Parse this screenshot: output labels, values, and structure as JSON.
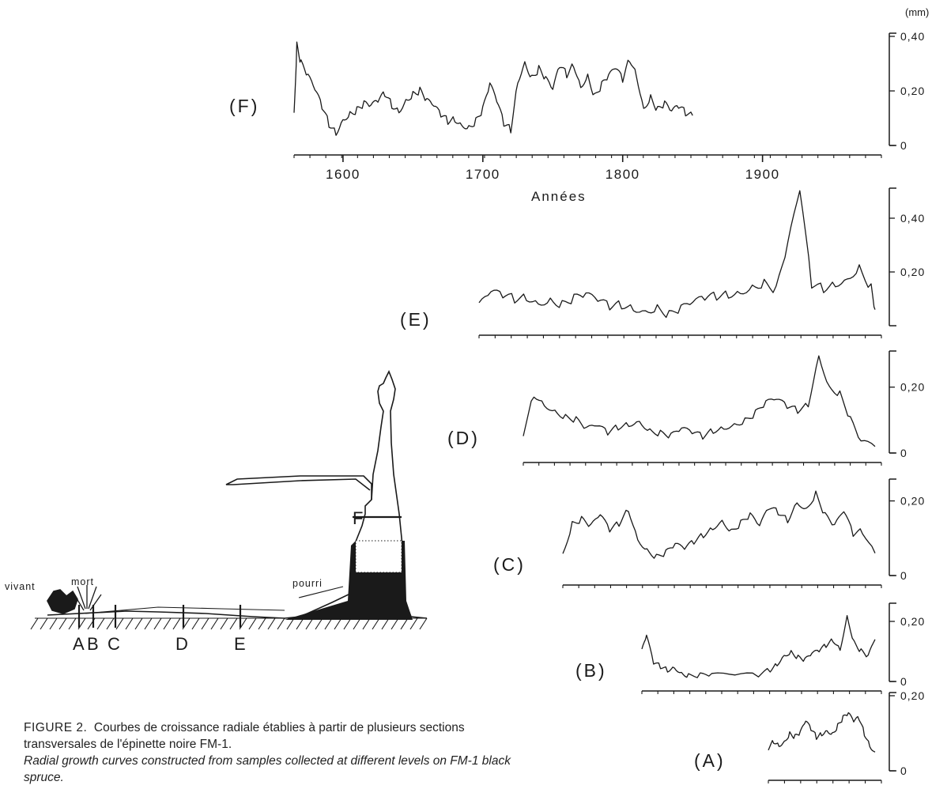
{
  "unit_label": "(mm)",
  "x_axis_label": "Années",
  "caption": {
    "figure_label": "FIGURE 2.",
    "french": "Courbes de croissance radiale établies à partir de plusieurs sections transversales de l'épinette noire FM-1.",
    "english": "Radial growth curves constructed from samples collected at different levels on FM-1 black spruce."
  },
  "diagram": {
    "labels": {
      "living": "vivant",
      "dead": "mort",
      "rotten": "pourri",
      "rotten_inside": "pourri"
    },
    "section_labels": [
      "A",
      "B",
      "C",
      "D",
      "E",
      "F"
    ]
  },
  "chart_data": [
    {
      "type": "line",
      "panel": "F",
      "label": "(F)",
      "ylim": [
        0,
        0.4
      ],
      "yticks": [
        0,
        0.2,
        0.4
      ],
      "ytick_labels": [
        "0",
        "0,20",
        "0,40"
      ],
      "xlim": [
        1565,
        1985
      ],
      "xticks": [
        1600,
        1700,
        1800,
        1900
      ],
      "xtick_labels": [
        "1600",
        "1700",
        "1800",
        "1900"
      ],
      "series": [
        {
          "x": [
            1565,
            1567,
            1570,
            1575,
            1580,
            1585,
            1590,
            1595,
            1600,
            1605,
            1610,
            1615,
            1620,
            1625,
            1630,
            1635,
            1640,
            1645,
            1650,
            1655,
            1660,
            1665,
            1670,
            1675,
            1680,
            1685,
            1690,
            1695,
            1700,
            1705,
            1710,
            1715,
            1720,
            1725,
            1730,
            1735,
            1740,
            1745,
            1750,
            1755,
            1760,
            1765,
            1770,
            1775,
            1780,
            1785,
            1790,
            1795,
            1800,
            1805,
            1810,
            1815,
            1820,
            1825,
            1830,
            1835,
            1840,
            1845,
            1850
          ],
          "y": [
            0.12,
            0.37,
            0.3,
            0.25,
            0.2,
            0.14,
            0.08,
            0.05,
            0.1,
            0.12,
            0.13,
            0.15,
            0.14,
            0.16,
            0.19,
            0.15,
            0.13,
            0.17,
            0.19,
            0.2,
            0.16,
            0.14,
            0.11,
            0.09,
            0.1,
            0.08,
            0.07,
            0.09,
            0.13,
            0.22,
            0.16,
            0.08,
            0.06,
            0.24,
            0.31,
            0.25,
            0.28,
            0.24,
            0.2,
            0.29,
            0.26,
            0.3,
            0.22,
            0.26,
            0.18,
            0.22,
            0.25,
            0.28,
            0.24,
            0.32,
            0.26,
            0.14,
            0.18,
            0.13,
            0.15,
            0.12,
            0.14,
            0.12,
            0.11
          ]
        }
      ]
    },
    {
      "type": "line",
      "panel": "E",
      "label": "(E)",
      "ylim": [
        0,
        0.5
      ],
      "yticks": [
        0.2,
        0.4
      ],
      "ytick_labels": [
        "0,20",
        "0,40"
      ],
      "series": [
        {
          "x": [
            0,
            3,
            6,
            9,
            12,
            15,
            18,
            21,
            24,
            27,
            30,
            33,
            36,
            39,
            42,
            45,
            48,
            51,
            54,
            57,
            60,
            63,
            66,
            69,
            72,
            75,
            78,
            81,
            84,
            87,
            90,
            93,
            96,
            99,
            100
          ],
          "y": [
            0.07,
            0.12,
            0.11,
            0.1,
            0.11,
            0.09,
            0.1,
            0.08,
            0.1,
            0.11,
            0.09,
            0.07,
            0.08,
            0.07,
            0.06,
            0.07,
            0.04,
            0.06,
            0.08,
            0.1,
            0.11,
            0.12,
            0.13,
            0.15,
            0.16,
            0.13,
            0.3,
            0.5,
            0.15,
            0.14,
            0.16,
            0.18,
            0.22,
            0.14,
            0.06
          ]
        }
      ]
    },
    {
      "type": "line",
      "panel": "D",
      "label": "(D)",
      "ylim": [
        0,
        0.3
      ],
      "yticks": [
        0,
        0.2
      ],
      "ytick_labels": [
        "0",
        "0,20"
      ],
      "series": [
        {
          "x": [
            0,
            3,
            6,
            9,
            12,
            15,
            18,
            21,
            24,
            27,
            30,
            33,
            36,
            39,
            42,
            45,
            48,
            51,
            54,
            57,
            60,
            63,
            66,
            69,
            72,
            75,
            78,
            81,
            84,
            87,
            90,
            93,
            96,
            100
          ],
          "y": [
            0.06,
            0.18,
            0.15,
            0.13,
            0.11,
            0.1,
            0.07,
            0.08,
            0.06,
            0.08,
            0.09,
            0.1,
            0.07,
            0.06,
            0.05,
            0.07,
            0.06,
            0.05,
            0.07,
            0.08,
            0.09,
            0.1,
            0.12,
            0.15,
            0.16,
            0.14,
            0.13,
            0.15,
            0.3,
            0.2,
            0.18,
            0.1,
            0.03,
            0.02
          ]
        }
      ]
    },
    {
      "type": "line",
      "panel": "C",
      "label": "(C)",
      "ylim": [
        0,
        0.25
      ],
      "yticks": [
        0,
        0.2
      ],
      "ytick_labels": [
        "0",
        "0,20"
      ],
      "series": [
        {
          "x": [
            0,
            3,
            6,
            9,
            12,
            15,
            18,
            21,
            24,
            27,
            30,
            33,
            36,
            39,
            42,
            45,
            48,
            51,
            54,
            57,
            60,
            63,
            66,
            69,
            72,
            75,
            78,
            81,
            84,
            87,
            90,
            93,
            96,
            100
          ],
          "y": [
            0.06,
            0.14,
            0.15,
            0.13,
            0.16,
            0.12,
            0.14,
            0.18,
            0.1,
            0.07,
            0.05,
            0.06,
            0.08,
            0.07,
            0.09,
            0.11,
            0.13,
            0.15,
            0.12,
            0.14,
            0.16,
            0.13,
            0.18,
            0.17,
            0.15,
            0.2,
            0.18,
            0.22,
            0.16,
            0.13,
            0.17,
            0.11,
            0.12,
            0.06
          ]
        }
      ]
    },
    {
      "type": "line",
      "panel": "B",
      "label": "(B)",
      "ylim": [
        0,
        0.25
      ],
      "yticks": [
        0,
        0.2
      ],
      "ytick_labels": [
        "0",
        "0,20"
      ],
      "series": [
        {
          "x": [
            0,
            2,
            5,
            8,
            11,
            14,
            17,
            20,
            25,
            30,
            40,
            50,
            55,
            58,
            61,
            64,
            67,
            70,
            73,
            76,
            79,
            82,
            85,
            88,
            91,
            94,
            97,
            100
          ],
          "y": [
            0.1,
            0.15,
            0.06,
            0.05,
            0.04,
            0.05,
            0.03,
            0.02,
            0.02,
            0.02,
            0.02,
            0.02,
            0.04,
            0.06,
            0.09,
            0.1,
            0.08,
            0.07,
            0.09,
            0.1,
            0.12,
            0.14,
            0.11,
            0.22,
            0.13,
            0.1,
            0.08,
            0.14
          ]
        }
      ]
    },
    {
      "type": "line",
      "panel": "A",
      "label": "(A)",
      "ylim": [
        0,
        0.2
      ],
      "yticks": [
        0,
        0.2
      ],
      "ytick_labels": [
        "0",
        "0,20"
      ],
      "series": [
        {
          "x": [
            0,
            5,
            10,
            15,
            20,
            25,
            30,
            35,
            40,
            45,
            50,
            55,
            60,
            65,
            70,
            75,
            80,
            85,
            90,
            95,
            100
          ],
          "y": [
            0.06,
            0.08,
            0.07,
            0.08,
            0.1,
            0.09,
            0.1,
            0.13,
            0.11,
            0.09,
            0.1,
            0.11,
            0.1,
            0.12,
            0.14,
            0.15,
            0.13,
            0.14,
            0.1,
            0.07,
            0.05
          ]
        }
      ]
    }
  ]
}
